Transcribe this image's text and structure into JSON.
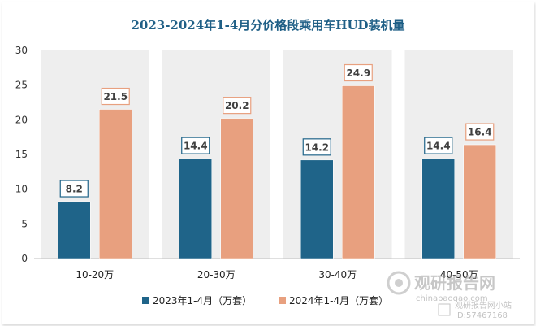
{
  "chart_data": {
    "type": "bar",
    "title": "2023-2024年1-4月分价格段乘用车HUD装机量",
    "categories": [
      "10-20万",
      "20-30万",
      "30-40万",
      "40-50万"
    ],
    "series": [
      {
        "name": "2023年1-4月（万套）",
        "values": [
          8.2,
          14.4,
          14.2,
          14.4
        ],
        "color": "#1f6489"
      },
      {
        "name": "2024年1-4月（万套）",
        "values": [
          21.5,
          20.2,
          24.9,
          16.4
        ],
        "color": "#e8a07f"
      }
    ],
    "ylim": [
      0,
      30
    ],
    "yticks": [
      0,
      5,
      10,
      15,
      20,
      25,
      30
    ],
    "legend": "bottom",
    "background_band": "#eeeeee"
  },
  "watermark": {
    "brand": "观研报告网",
    "site": "chinabaogao.com",
    "stamp": "观研报告网小站",
    "id": "ID:57467168"
  }
}
